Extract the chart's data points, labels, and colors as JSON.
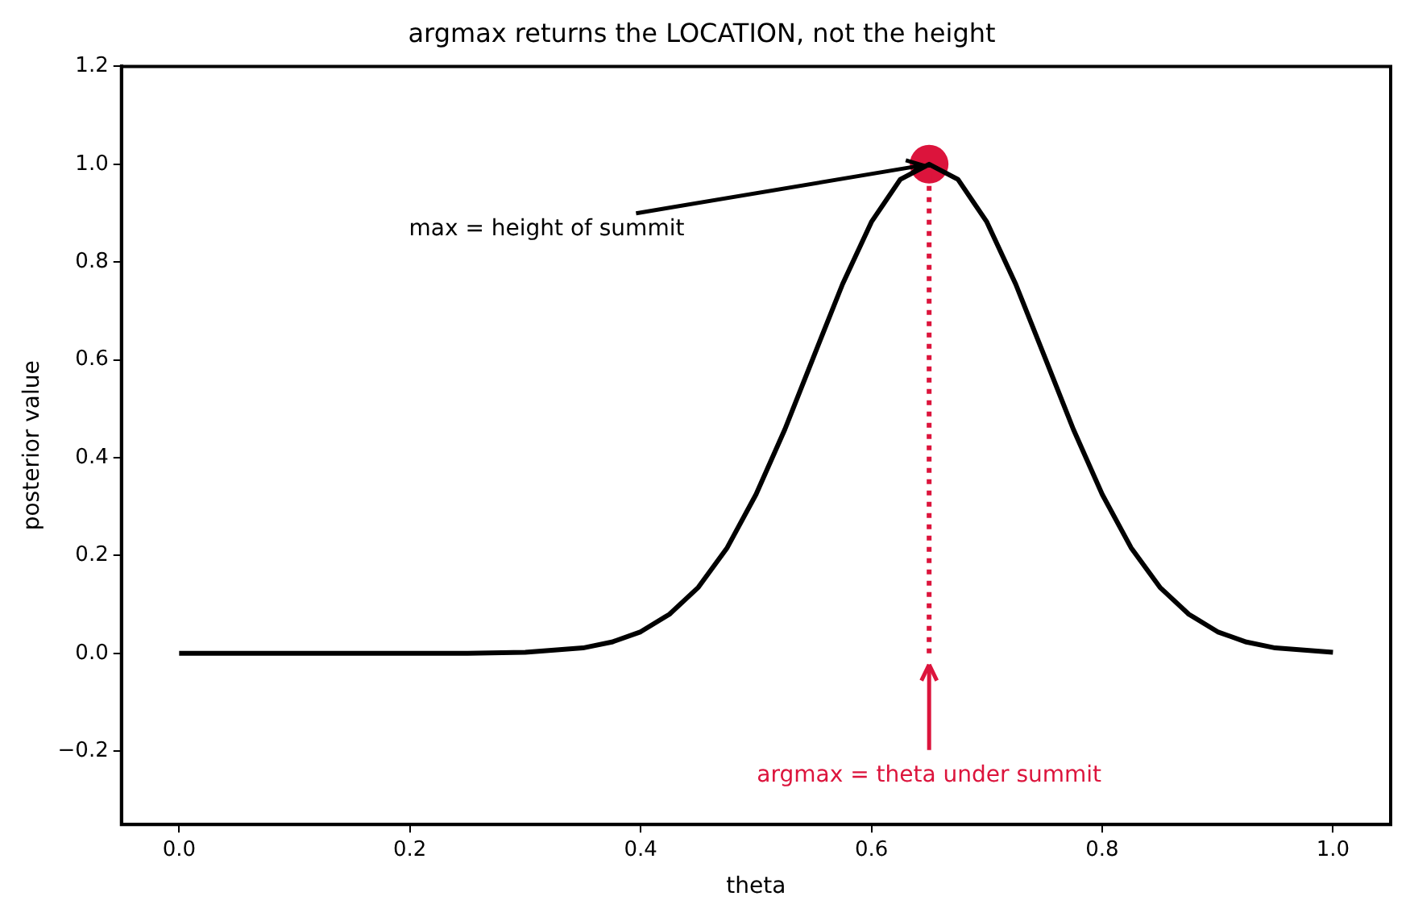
{
  "chart_data": {
    "type": "line",
    "title": "argmax returns the LOCATION, not the height",
    "xlabel": "theta",
    "ylabel": "posterior value",
    "xlim": [
      -0.05,
      1.05
    ],
    "ylim": [
      -0.35,
      1.2
    ],
    "xticks": [
      {
        "value": 0,
        "label": "0.0"
      },
      {
        "value": 0.2,
        "label": "0.2"
      },
      {
        "value": 0.4,
        "label": "0.4"
      },
      {
        "value": 0.6,
        "label": "0.6"
      },
      {
        "value": 0.8,
        "label": "0.8"
      },
      {
        "value": 1,
        "label": "1.0"
      }
    ],
    "yticks": [
      {
        "value": -0.2,
        "label": "−0.2"
      },
      {
        "value": 0,
        "label": "0.0"
      },
      {
        "value": 0.2,
        "label": "0.2"
      },
      {
        "value": 0.4,
        "label": "0.4"
      },
      {
        "value": 0.6,
        "label": "0.6"
      },
      {
        "value": 0.8,
        "label": "0.8"
      },
      {
        "value": 1,
        "label": "1.0"
      },
      {
        "value": 1.2,
        "label": "1.2"
      }
    ],
    "grid": false,
    "legend": false,
    "series": [
      {
        "type": "line",
        "color": "#000000",
        "line_style": "solid",
        "x": [
          0,
          0.1,
          0.2,
          0.25,
          0.3,
          0.35,
          0.375,
          0.4,
          0.425,
          0.45,
          0.475,
          0.5,
          0.525,
          0.55,
          0.575,
          0.6,
          0.625,
          0.65,
          0.675,
          0.7,
          0.725,
          0.75,
          0.775,
          0.8,
          0.825,
          0.85,
          0.875,
          0.9,
          0.925,
          0.95,
          1.0
        ],
        "values": [
          0,
          0,
          0,
          0,
          0.002,
          0.011,
          0.023,
          0.044,
          0.08,
          0.135,
          0.216,
          0.325,
          0.458,
          0.607,
          0.755,
          0.882,
          0.969,
          1.0,
          0.969,
          0.882,
          0.755,
          0.607,
          0.458,
          0.325,
          0.216,
          0.135,
          0.08,
          0.044,
          0.023,
          0.011,
          0.002
        ]
      },
      {
        "type": "line",
        "color": "#dc143c",
        "line_style": "dotted",
        "x": [
          0.65,
          0.65
        ],
        "values": [
          0,
          1.0
        ]
      },
      {
        "type": "scatter",
        "color": "#dc143c",
        "marker": "circle",
        "x": [
          0.65
        ],
        "values": [
          1.0
        ]
      }
    ],
    "annotations": [
      {
        "text": "max = height of summit",
        "x": 0.65,
        "y": 1.0
      },
      {
        "text": "argmax = theta under summit",
        "x": 0.65,
        "y": 0
      }
    ]
  }
}
